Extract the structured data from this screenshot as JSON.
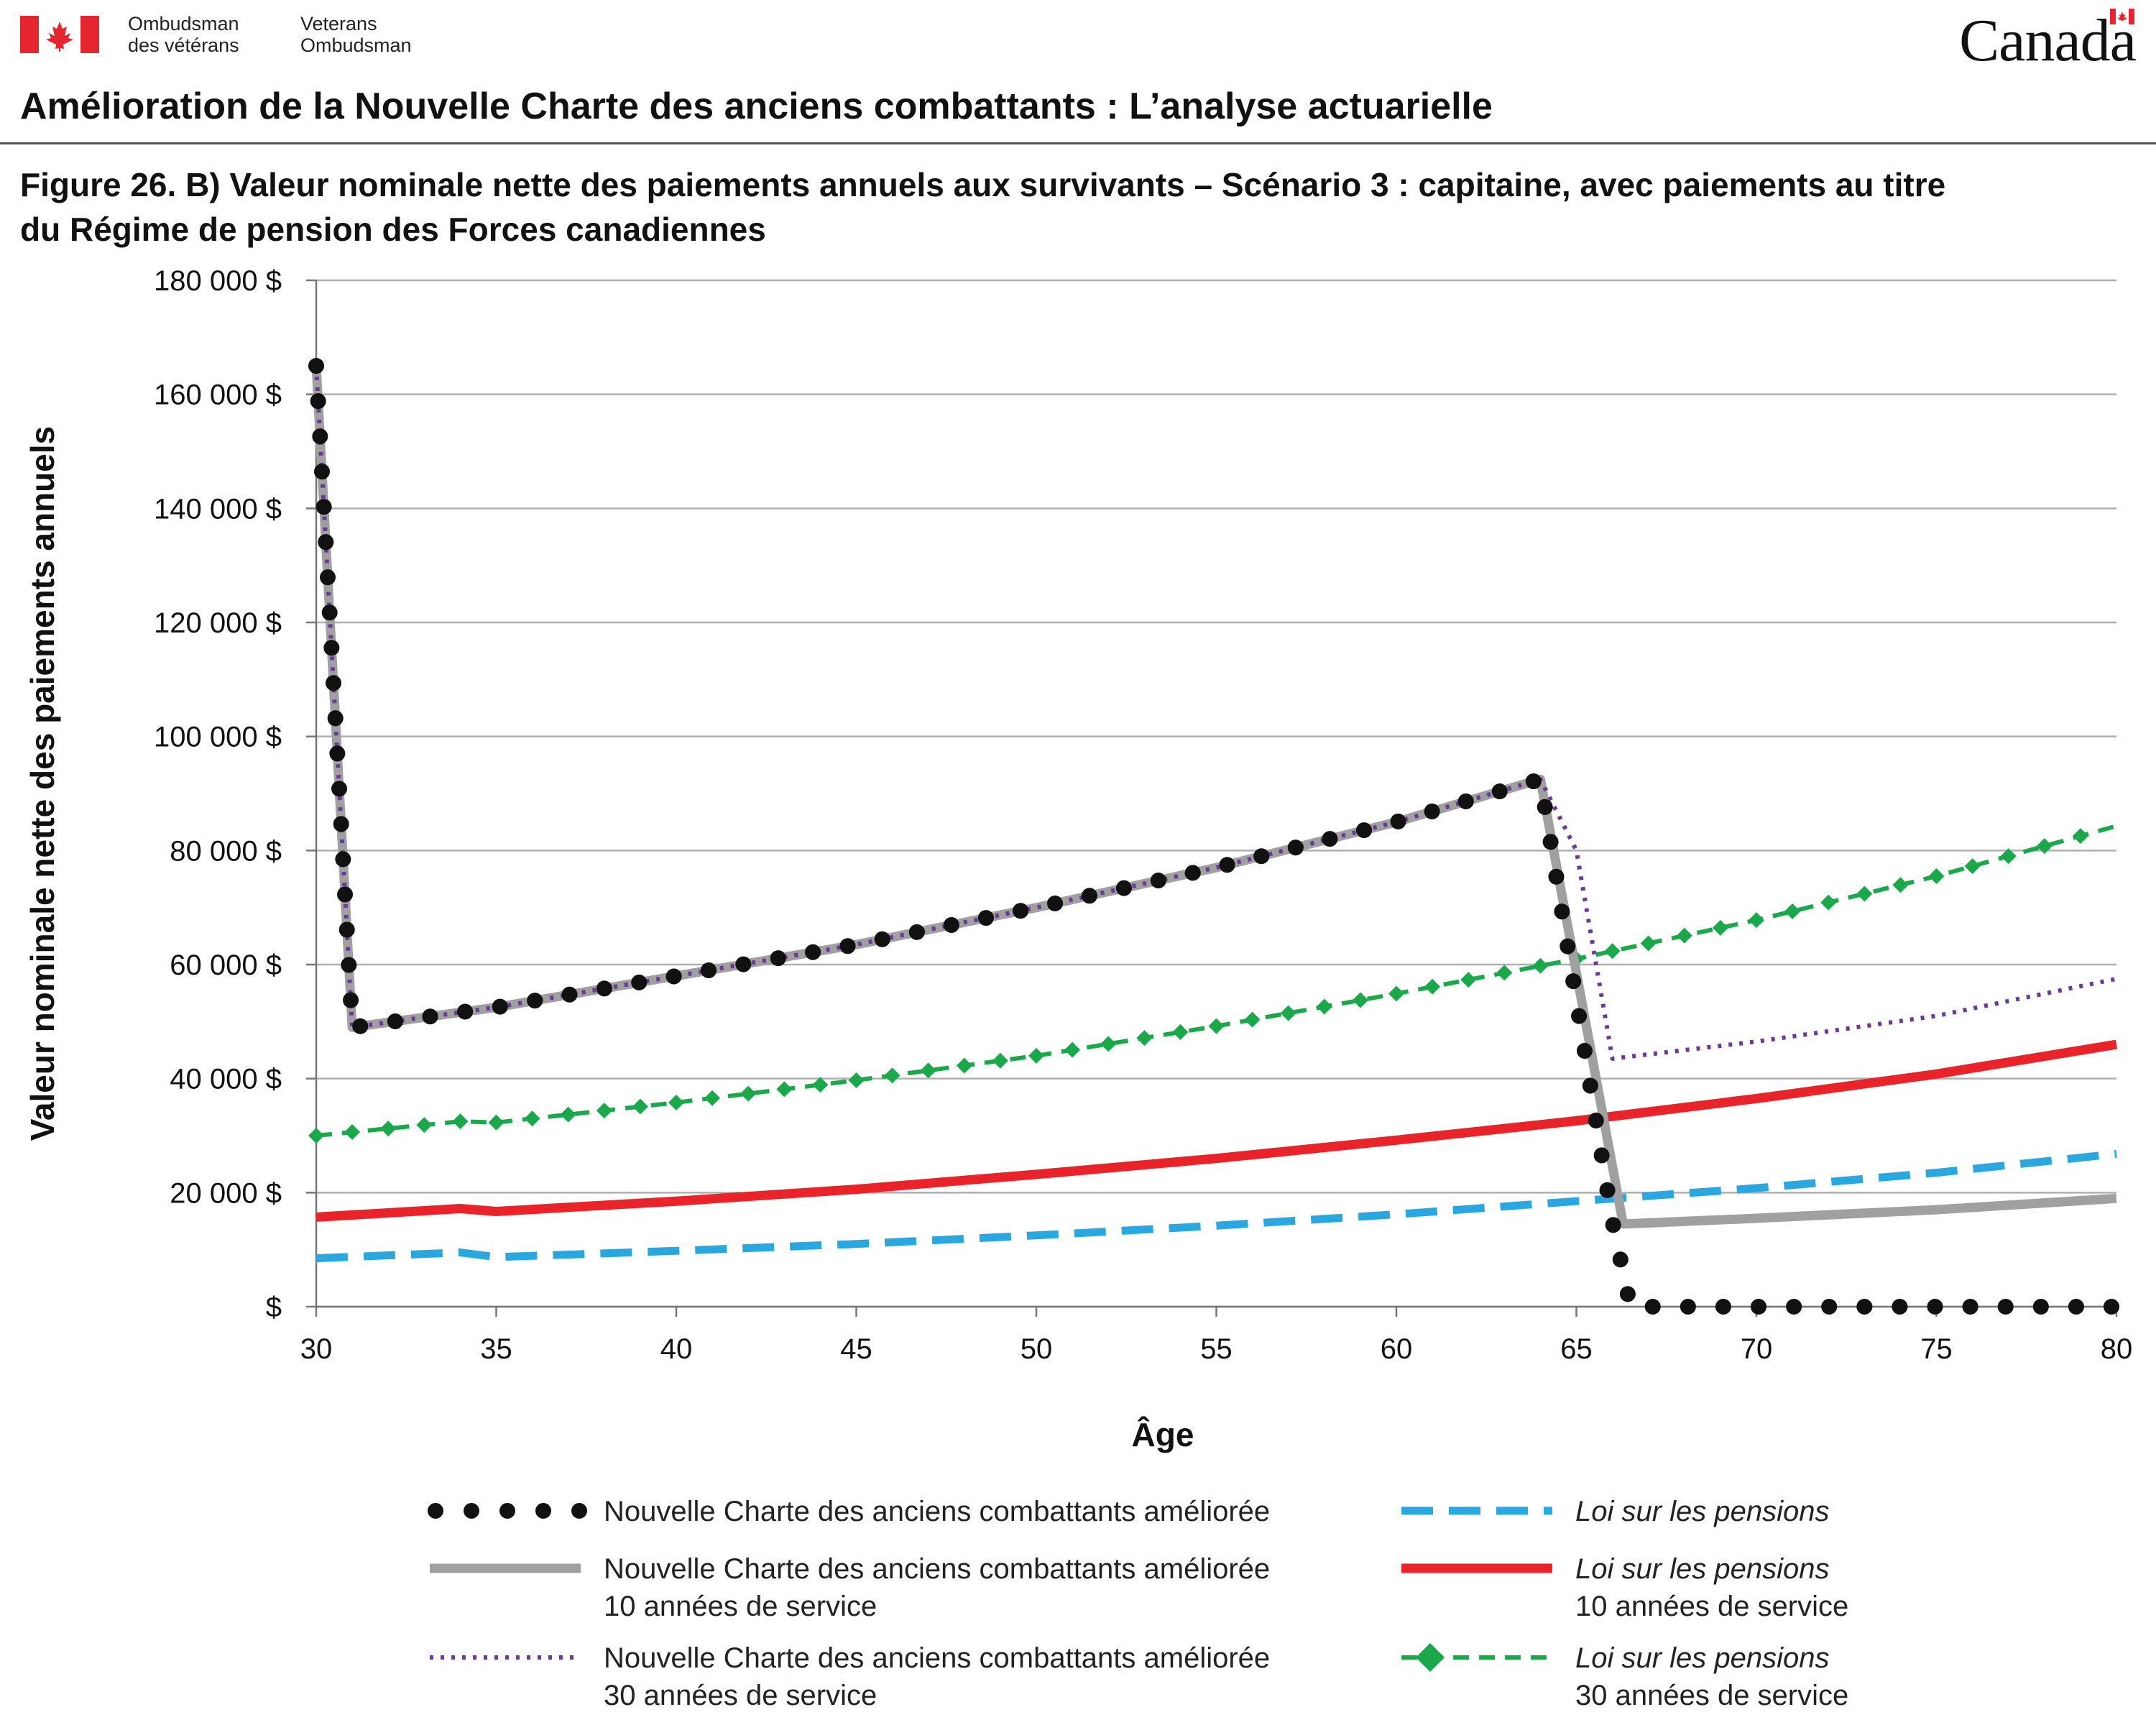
{
  "header": {
    "org_fr_line1": "Ombudsman",
    "org_fr_line2": "des vétérans",
    "org_en_line1": "Veterans",
    "org_en_line2": "Ombudsman",
    "wordmark": "Canada"
  },
  "document_title": "Amélioration de la Nouvelle Charte des anciens combattants : L’analyse actuarielle",
  "figure_title": "Figure 26. B) Valeur nominale nette des paiements annuels aux survivants – Scénario 3 : capitaine, avec paiements au titre du Régime de pension des Forces canadiennes",
  "colors": {
    "flag_red": "#e3262f",
    "black_series": "#111111",
    "gray_series": "#a0a0a0",
    "purple_series": "#6b3a99",
    "blue_series": "#2aa7df",
    "red_series": "#e8232a",
    "green_series": "#1aa84a",
    "grid": "#b0b0b0"
  },
  "chart_data": {
    "type": "line",
    "title": "",
    "xlabel": "Âge",
    "ylabel": "Valeur nominale nette des paiements annuels",
    "xlim": [
      30,
      80
    ],
    "ylim": [
      0,
      180000
    ],
    "xticks": [
      30,
      35,
      40,
      45,
      50,
      55,
      60,
      65,
      70,
      75,
      80
    ],
    "xtick_labels": [
      "30",
      "35",
      "40",
      "45",
      "50",
      "55",
      "60",
      "65",
      "70",
      "75",
      "80"
    ],
    "yticks": [
      0,
      20000,
      40000,
      60000,
      80000,
      100000,
      120000,
      140000,
      160000,
      180000
    ],
    "ytick_labels": [
      "$",
      "20 000 $",
      "40 000 $",
      "60 000 $",
      "80 000 $",
      "100 000 $",
      "120 000 $",
      "140 000 $",
      "160 000 $",
      "180 000 $"
    ],
    "grid": "horizontal",
    "legend_placement": "bottom",
    "series": [
      {
        "name": "Nouvelle Charte des anciens combattants améliorée",
        "style": "dots",
        "color": "#111111",
        "points": [
          [
            30,
            165000
          ],
          [
            31,
            49000
          ],
          [
            35,
            52500
          ],
          [
            40,
            58000
          ],
          [
            45,
            63500
          ],
          [
            50,
            70000
          ],
          [
            55,
            77000
          ],
          [
            60,
            85000
          ],
          [
            64,
            92500
          ],
          [
            66,
            15000
          ],
          [
            66.5,
            0
          ],
          [
            80,
            0
          ]
        ]
      },
      {
        "name": "Nouvelle Charte des anciens combattants améliorée 10 années de service",
        "style": "solid-thick",
        "color": "#a0a0a0",
        "points": [
          [
            30,
            165000
          ],
          [
            31,
            49000
          ],
          [
            35,
            52500
          ],
          [
            40,
            58000
          ],
          [
            45,
            63500
          ],
          [
            50,
            70000
          ],
          [
            55,
            77000
          ],
          [
            60,
            85000
          ],
          [
            64,
            92500
          ],
          [
            66.3,
            14500
          ],
          [
            70,
            15500
          ],
          [
            75,
            17000
          ],
          [
            80,
            19000
          ]
        ]
      },
      {
        "name": "Nouvelle Charte des anciens combattants améliorée 30 années de service",
        "style": "dotted",
        "color": "#6b3a99",
        "points": [
          [
            30,
            165000
          ],
          [
            31,
            49000
          ],
          [
            35,
            52500
          ],
          [
            40,
            58000
          ],
          [
            45,
            63500
          ],
          [
            50,
            70000
          ],
          [
            55,
            77000
          ],
          [
            60,
            85000
          ],
          [
            64,
            92500
          ],
          [
            65,
            80000
          ],
          [
            66,
            43500
          ],
          [
            70,
            46500
          ],
          [
            75,
            51000
          ],
          [
            80,
            57500
          ]
        ]
      },
      {
        "name": "Loi sur les pensions",
        "style": "dashed",
        "color": "#2aa7df",
        "points": [
          [
            30,
            8500
          ],
          [
            34,
            9500
          ],
          [
            35,
            8700
          ],
          [
            40,
            9800
          ],
          [
            45,
            11000
          ],
          [
            50,
            12500
          ],
          [
            55,
            14200
          ],
          [
            60,
            16200
          ],
          [
            65,
            18500
          ],
          [
            70,
            20800
          ],
          [
            75,
            23500
          ],
          [
            80,
            26800
          ]
        ]
      },
      {
        "name": "Loi sur les pensions 10 années de service",
        "style": "solid-thick",
        "color": "#e8232a",
        "points": [
          [
            30,
            15700
          ],
          [
            34,
            17200
          ],
          [
            35,
            16700
          ],
          [
            40,
            18500
          ],
          [
            45,
            20600
          ],
          [
            50,
            23200
          ],
          [
            55,
            26000
          ],
          [
            60,
            29200
          ],
          [
            65,
            32600
          ],
          [
            70,
            36500
          ],
          [
            75,
            40800
          ],
          [
            80,
            46000
          ]
        ]
      },
      {
        "name": "Loi sur les pensions 30 années de service",
        "style": "dashed-diamond",
        "color": "#1aa84a",
        "points": [
          [
            30,
            30000
          ],
          [
            34,
            32500
          ],
          [
            35,
            32300
          ],
          [
            40,
            35800
          ],
          [
            45,
            39700
          ],
          [
            50,
            44000
          ],
          [
            55,
            49200
          ],
          [
            60,
            54900
          ],
          [
            65,
            61000
          ],
          [
            70,
            67800
          ],
          [
            75,
            75500
          ],
          [
            80,
            84300
          ]
        ]
      }
    ]
  },
  "legend": [
    {
      "line1": "Nouvelle Charte des anciens combattants améliorée",
      "line2": ""
    },
    {
      "line1": "Nouvelle Charte des anciens combattants améliorée",
      "line2": "10 années de service"
    },
    {
      "line1": "Nouvelle Charte des anciens combattants améliorée",
      "line2": "30 années de service"
    },
    {
      "line1": "Loi sur les pensions",
      "line2": ""
    },
    {
      "line1": "Loi sur les pensions",
      "line2": "10 années de service"
    },
    {
      "line1": "Loi sur les pensions",
      "line2": "30 années de service"
    }
  ]
}
